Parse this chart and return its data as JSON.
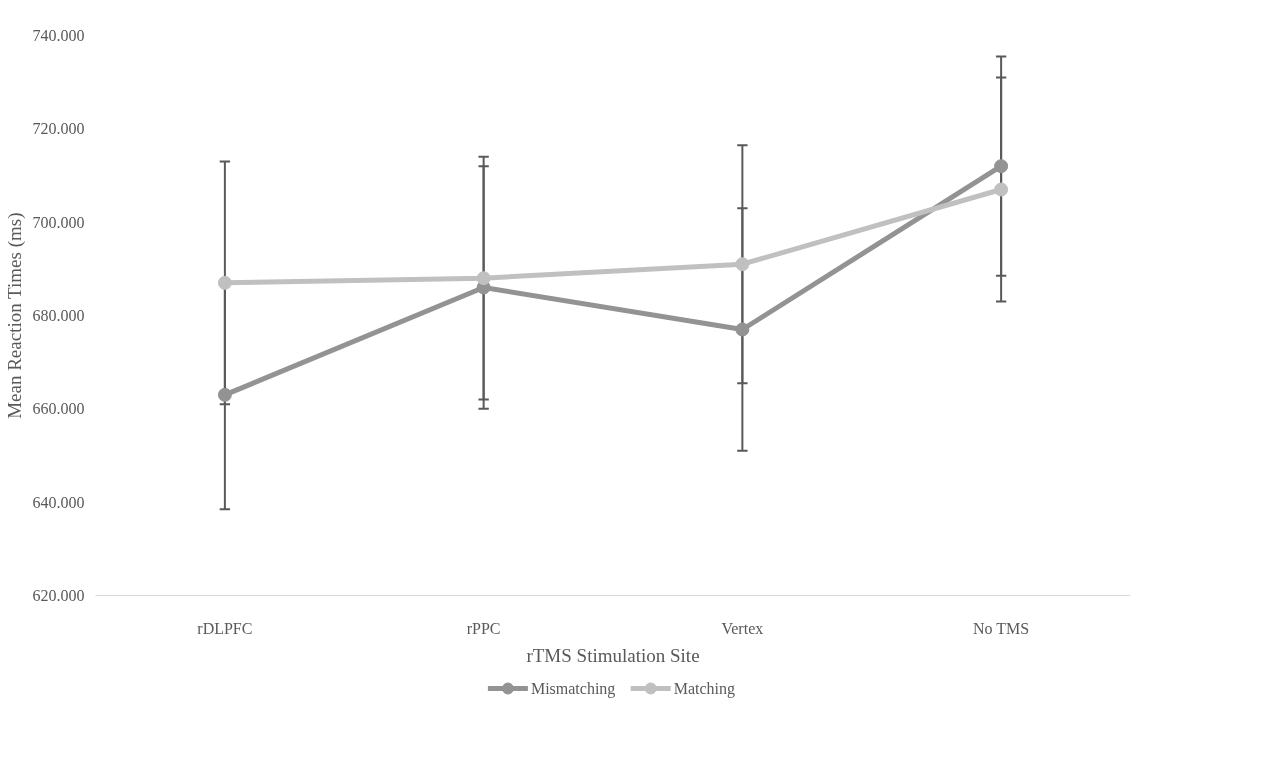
{
  "chart_data": {
    "type": "line",
    "xlabel": "rTMS Stimulation Site",
    "ylabel": "Mean Reaction Times (ms)",
    "categories": [
      "rDLPFC",
      "rPPC",
      "Vertex",
      "No TMS"
    ],
    "series": [
      {
        "name": "Mismatching",
        "color": "#939393",
        "values": [
          663,
          686,
          677,
          712
        ],
        "errors": [
          24.5,
          26,
          26,
          23.5
        ]
      },
      {
        "name": "Matching",
        "color": "#c0c0c0",
        "values": [
          687,
          688,
          691,
          707
        ],
        "errors": [
          26,
          26,
          25.5,
          24
        ]
      }
    ],
    "ylim": [
      620,
      740
    ],
    "yticks": [
      {
        "value": 620,
        "label": "620.000"
      },
      {
        "value": 640,
        "label": "640.000"
      },
      {
        "value": 660,
        "label": "660.000"
      },
      {
        "value": 680,
        "label": "680.000"
      },
      {
        "value": 700,
        "label": "700.000"
      },
      {
        "value": 720,
        "label": "720.000"
      },
      {
        "value": 740,
        "label": "740.000"
      }
    ],
    "grid": false,
    "legend": "bottom",
    "marker": "circle",
    "line_style": "solid"
  }
}
